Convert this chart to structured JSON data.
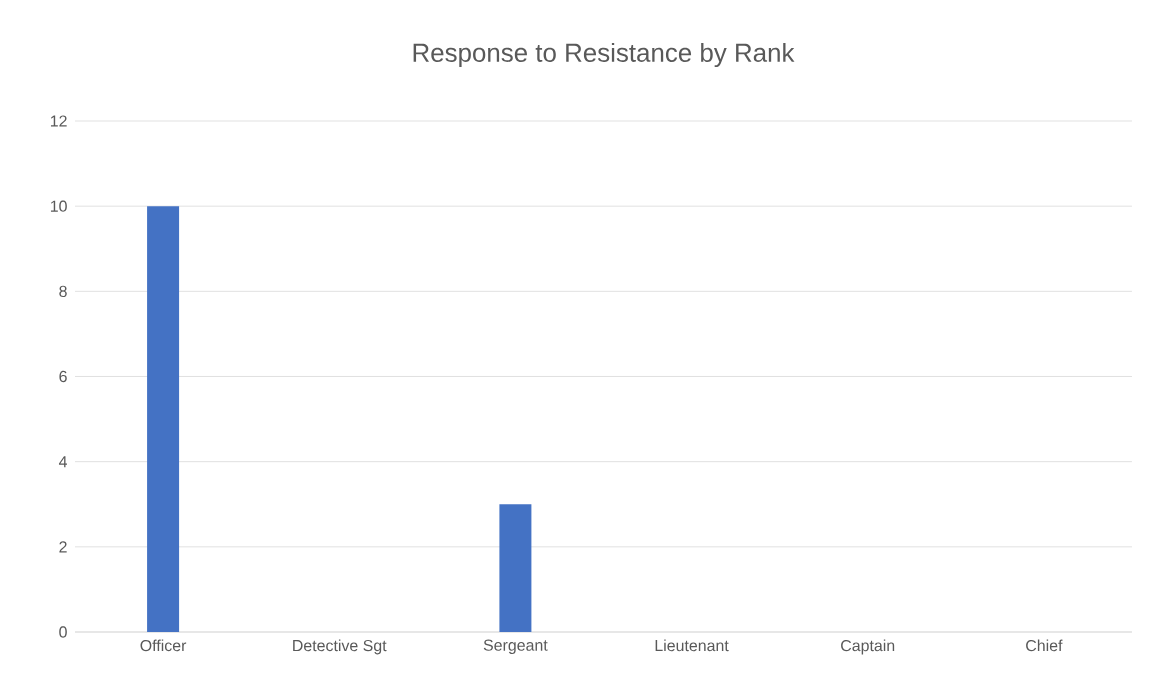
{
  "chart_data": {
    "type": "bar",
    "title": "Response to Resistance by Rank",
    "categories": [
      "Officer",
      "Detective Sgt",
      "Sergeant",
      "Lieutenant",
      "Captain",
      "Chief"
    ],
    "values": [
      10,
      0,
      3,
      0,
      0,
      0
    ],
    "color": "#4472c4",
    "ylim": [
      0,
      12
    ],
    "yticks": [
      0,
      2,
      4,
      6,
      8,
      10,
      12
    ],
    "grid": "y"
  }
}
